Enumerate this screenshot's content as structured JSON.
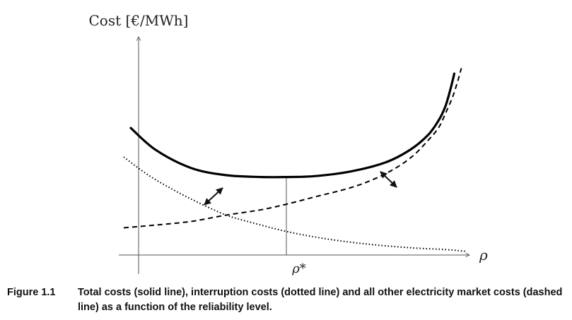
{
  "chart_data": {
    "type": "line",
    "ylabel": "Cost [€/MWh]",
    "xlabel": "ρ",
    "x_marker_label": "ρ*",
    "ticks_shown": false,
    "grid": false,
    "series": [
      {
        "style": "solid",
        "points": [
          [
            0.03,
            0.7
          ],
          [
            0.1,
            0.58
          ],
          [
            0.2,
            0.48
          ],
          [
            0.3,
            0.44
          ],
          [
            0.4,
            0.43
          ],
          [
            0.47,
            0.43
          ],
          [
            0.55,
            0.435
          ],
          [
            0.65,
            0.46
          ],
          [
            0.75,
            0.51
          ],
          [
            0.82,
            0.58
          ],
          [
            0.87,
            0.66
          ],
          [
            0.9,
            0.74
          ],
          [
            0.92,
            0.82
          ],
          [
            0.935,
            0.92
          ],
          [
            0.945,
            1.0
          ]
        ]
      },
      {
        "style": "dotted",
        "points": [
          [
            0.01,
            0.54
          ],
          [
            0.08,
            0.44
          ],
          [
            0.15,
            0.36
          ],
          [
            0.22,
            0.29
          ],
          [
            0.3,
            0.22
          ],
          [
            0.37,
            0.18
          ],
          [
            0.47,
            0.13
          ],
          [
            0.58,
            0.09
          ],
          [
            0.7,
            0.06
          ],
          [
            0.82,
            0.04
          ],
          [
            0.92,
            0.03
          ],
          [
            0.98,
            0.02
          ]
        ]
      },
      {
        "style": "dashed",
        "points": [
          [
            0.01,
            0.15
          ],
          [
            0.1,
            0.165
          ],
          [
            0.2,
            0.185
          ],
          [
            0.3,
            0.22
          ],
          [
            0.4,
            0.25
          ],
          [
            0.47,
            0.28
          ],
          [
            0.55,
            0.32
          ],
          [
            0.65,
            0.37
          ],
          [
            0.72,
            0.42
          ],
          [
            0.78,
            0.48
          ],
          [
            0.83,
            0.55
          ],
          [
            0.87,
            0.63
          ],
          [
            0.9,
            0.7
          ],
          [
            0.92,
            0.78
          ],
          [
            0.94,
            0.87
          ],
          [
            0.955,
            0.96
          ],
          [
            0.965,
            1.03
          ]
        ]
      }
    ],
    "optimum_x": 0.47,
    "xlim": [
      -0.06,
      1.06
    ],
    "ylim": [
      0,
      1.25
    ]
  },
  "caption": {
    "number": "Figure 1.1",
    "text": "Total costs (solid line), interruption costs (dotted line) and all other electricity market costs (dashed line) as a function of the reliability level."
  }
}
